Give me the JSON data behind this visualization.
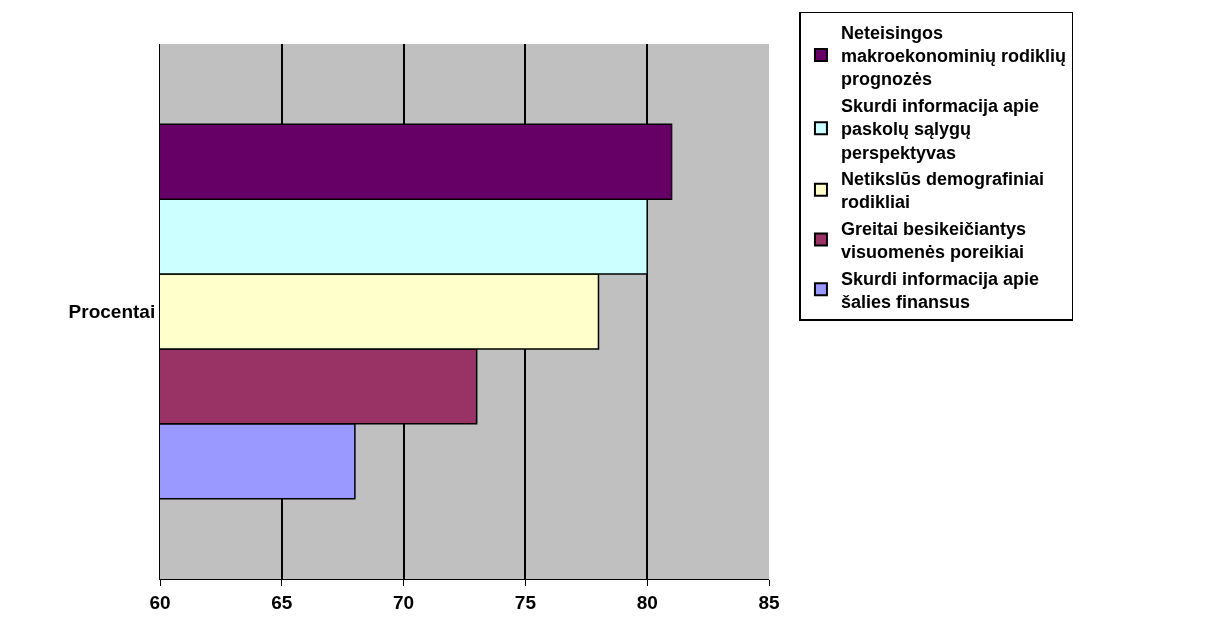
{
  "chart_data": {
    "type": "bar",
    "orientation": "horizontal",
    "categories": [
      "Procentai"
    ],
    "series": [
      {
        "name": "Neteisingos makroekonominių rodiklių prognozės",
        "color": "#660066",
        "values": [
          81
        ]
      },
      {
        "name": "Skurdi informacija apie paskolų sąlygų perspektyvas",
        "color": "#ccffff",
        "values": [
          80
        ]
      },
      {
        "name": "Netikslūs demografiniai rodikliai",
        "color": "#ffffcc",
        "values": [
          78
        ]
      },
      {
        "name": "Greitai besikeičiantys visuomenės poreikiai",
        "color": "#993366",
        "values": [
          73
        ]
      },
      {
        "name": "Skurdi informacija apie šalies finansus",
        "color": "#9999ff",
        "values": [
          68
        ]
      }
    ],
    "xlim": [
      60,
      85
    ],
    "xticks": [
      60,
      65,
      70,
      75,
      80,
      85
    ],
    "grid": "x",
    "legend": "right"
  }
}
